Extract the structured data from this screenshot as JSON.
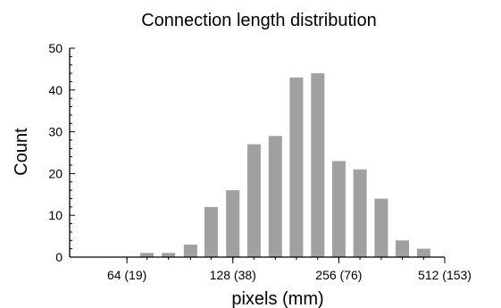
{
  "chart_data": {
    "type": "bar",
    "title": "Connection length distribution",
    "xlabel": "pixels (mm)",
    "ylabel": "Count",
    "x_scale": "log2",
    "xlim": [
      44,
      512
    ],
    "ylim": [
      0,
      50
    ],
    "y_ticks": [
      0,
      10,
      20,
      30,
      40,
      50
    ],
    "x_ticks": [
      {
        "value": 64,
        "label": "64 (19)"
      },
      {
        "value": 128,
        "label": "128 (38)"
      },
      {
        "value": 256,
        "label": "256 (76)"
      },
      {
        "value": 512,
        "label": "512 (153)"
      }
    ],
    "bars": [
      {
        "x": 64,
        "value": 0
      },
      {
        "x": 73,
        "value": 1
      },
      {
        "x": 84,
        "value": 1
      },
      {
        "x": 97,
        "value": 3
      },
      {
        "x": 111,
        "value": 12
      },
      {
        "x": 128,
        "value": 16
      },
      {
        "x": 147,
        "value": 27
      },
      {
        "x": 169,
        "value": 29
      },
      {
        "x": 194,
        "value": 43
      },
      {
        "x": 223,
        "value": 44
      },
      {
        "x": 256,
        "value": 23
      },
      {
        "x": 294,
        "value": 21
      },
      {
        "x": 338,
        "value": 14
      },
      {
        "x": 388,
        "value": 4
      },
      {
        "x": 446,
        "value": 2
      }
    ],
    "bar_color": "#a0a0a0",
    "grid": false,
    "legend": "none"
  }
}
